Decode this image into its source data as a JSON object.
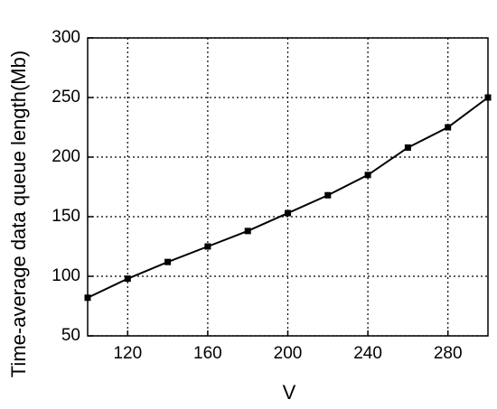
{
  "chart_data": {
    "type": "line",
    "x": [
      100,
      120,
      140,
      160,
      180,
      200,
      220,
      240,
      260,
      280,
      300
    ],
    "series": [
      {
        "color": "#000000",
        "values": [
          82,
          98,
          112,
          125,
          138,
          153,
          168,
          185,
          208,
          225,
          250
        ]
      }
    ],
    "xlim": [
      100,
      300
    ],
    "xticks": [
      120,
      160,
      200,
      240,
      280
    ],
    "ylim": [
      50,
      300
    ],
    "yticks": [
      50,
      100,
      150,
      200,
      250,
      300
    ],
    "xlabel": "V",
    "ylabel": "Time-average data queue length(Mb)",
    "grid": true
  }
}
